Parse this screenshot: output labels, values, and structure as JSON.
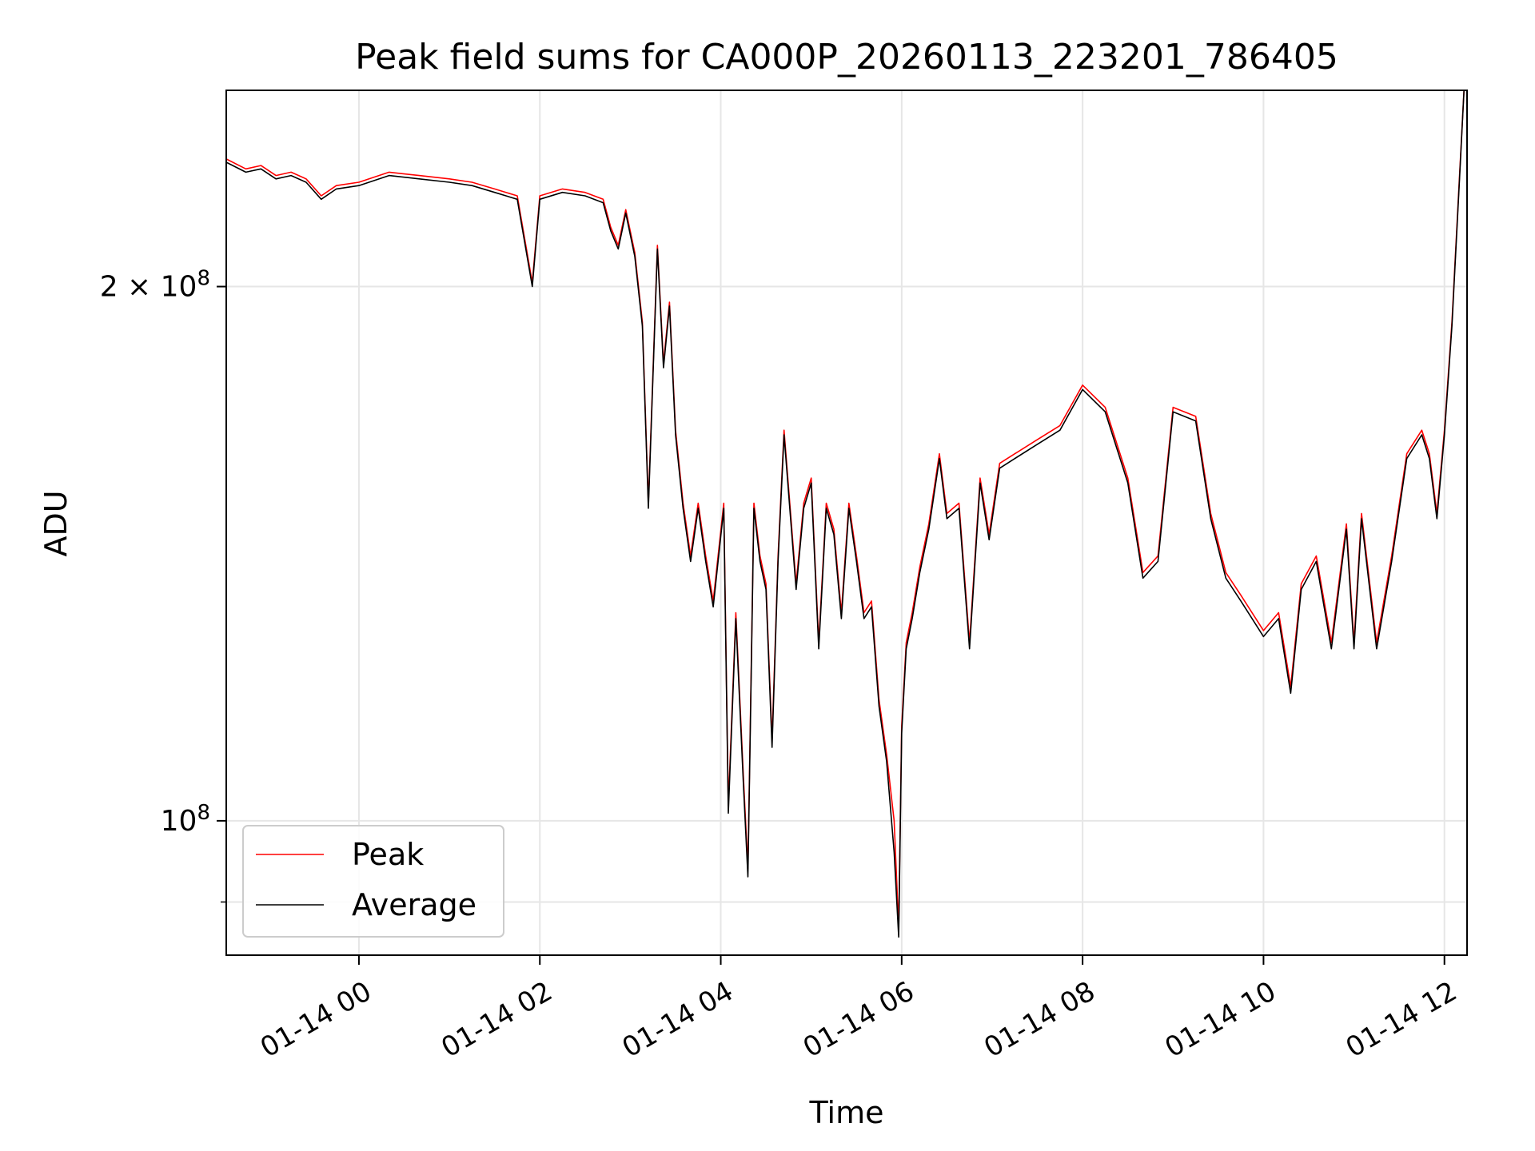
{
  "chart_data": {
    "type": "line",
    "title": "Peak field sums for CA000P_20260113_223201_786405",
    "xlabel": "Time",
    "ylabel": "ADU",
    "x_ticks": [
      "01-14 00",
      "01-14 02",
      "01-14 04",
      "01-14 06",
      "01-14 08",
      "01-14 10",
      "01-14 12"
    ],
    "y_ticks_major": [
      {
        "value": 100000000,
        "label": "10^8"
      },
      {
        "value": 200000000,
        "label": "2 × 10^8"
      }
    ],
    "y_scale": "log",
    "xlim": [
      "2026-01-13 22:32",
      "2026-01-14 12:15"
    ],
    "ylim": [
      84000000,
      258000000
    ],
    "grid": true,
    "legend_position": "lower-left",
    "series": [
      {
        "name": "Peak",
        "color": "#ff0000"
      },
      {
        "name": "Average",
        "color": "#000000"
      }
    ],
    "x": [
      "2026-01-13 22:32",
      "2026-01-13 22:45",
      "2026-01-13 22:55",
      "2026-01-13 23:05",
      "2026-01-13 23:15",
      "2026-01-13 23:25",
      "2026-01-13 23:35",
      "2026-01-13 23:45",
      "2026-01-14 00:00",
      "2026-01-14 00:20",
      "2026-01-14 00:40",
      "2026-01-14 01:00",
      "2026-01-14 01:15",
      "2026-01-14 01:30",
      "2026-01-14 01:45",
      "2026-01-14 01:55",
      "2026-01-14 02:00",
      "2026-01-14 02:15",
      "2026-01-14 02:30",
      "2026-01-14 02:42",
      "2026-01-14 02:47",
      "2026-01-14 02:52",
      "2026-01-14 02:57",
      "2026-01-14 03:03",
      "2026-01-14 03:08",
      "2026-01-14 03:12",
      "2026-01-14 03:18",
      "2026-01-14 03:22",
      "2026-01-14 03:26",
      "2026-01-14 03:30",
      "2026-01-14 03:35",
      "2026-01-14 03:40",
      "2026-01-14 03:45",
      "2026-01-14 03:50",
      "2026-01-14 03:55",
      "2026-01-14 04:02",
      "2026-01-14 04:05",
      "2026-01-14 04:10",
      "2026-01-14 04:15",
      "2026-01-14 04:18",
      "2026-01-14 04:22",
      "2026-01-14 04:26",
      "2026-01-14 04:30",
      "2026-01-14 04:34",
      "2026-01-14 04:38",
      "2026-01-14 04:42",
      "2026-01-14 04:50",
      "2026-01-14 04:55",
      "2026-01-14 05:00",
      "2026-01-14 05:05",
      "2026-01-14 05:10",
      "2026-01-14 05:15",
      "2026-01-14 05:20",
      "2026-01-14 05:25",
      "2026-01-14 05:30",
      "2026-01-14 05:35",
      "2026-01-14 05:40",
      "2026-01-14 05:45",
      "2026-01-14 05:50",
      "2026-01-14 05:55",
      "2026-01-14 05:58",
      "2026-01-14 06:00",
      "2026-01-14 06:03",
      "2026-01-14 06:07",
      "2026-01-14 06:12",
      "2026-01-14 06:18",
      "2026-01-14 06:25",
      "2026-01-14 06:30",
      "2026-01-14 06:38",
      "2026-01-14 06:45",
      "2026-01-14 06:52",
      "2026-01-14 06:58",
      "2026-01-14 07:05",
      "2026-01-14 07:15",
      "2026-01-14 07:30",
      "2026-01-14 07:45",
      "2026-01-14 08:00",
      "2026-01-14 08:15",
      "2026-01-14 08:30",
      "2026-01-14 08:40",
      "2026-01-14 08:50",
      "2026-01-14 09:00",
      "2026-01-14 09:15",
      "2026-01-14 09:25",
      "2026-01-14 09:35",
      "2026-01-14 09:45",
      "2026-01-14 10:00",
      "2026-01-14 10:10",
      "2026-01-14 10:18",
      "2026-01-14 10:25",
      "2026-01-14 10:35",
      "2026-01-14 10:45",
      "2026-01-14 10:55",
      "2026-01-14 11:00",
      "2026-01-14 11:05",
      "2026-01-14 11:15",
      "2026-01-14 11:25",
      "2026-01-14 11:35",
      "2026-01-14 11:45",
      "2026-01-14 11:50",
      "2026-01-14 11:55",
      "2026-01-14 12:00",
      "2026-01-14 12:05",
      "2026-01-14 12:10",
      "2026-01-14 12:13"
    ],
    "average_values": [
      235000000,
      232000000,
      233000000,
      230000000,
      231000000,
      229000000,
      224000000,
      227000000,
      228000000,
      231000000,
      230000000,
      229000000,
      228000000,
      226000000,
      224000000,
      200000000,
      224000000,
      226000000,
      225000000,
      223000000,
      215000000,
      210000000,
      220000000,
      208000000,
      190000000,
      150000000,
      210000000,
      180000000,
      195000000,
      165000000,
      150000000,
      140000000,
      150000000,
      140000000,
      132000000,
      150000000,
      101000000,
      130000000,
      105000000,
      93000000,
      150000000,
      140000000,
      135000000,
      110000000,
      140000000,
      165000000,
      135000000,
      150000000,
      155000000,
      125000000,
      150000000,
      145000000,
      130000000,
      150000000,
      140000000,
      130000000,
      132000000,
      116000000,
      108000000,
      96000000,
      86000000,
      112000000,
      125000000,
      130000000,
      138000000,
      146000000,
      160000000,
      148000000,
      150000000,
      125000000,
      155000000,
      144000000,
      158000000,
      160000000,
      163000000,
      166000000,
      175000000,
      170000000,
      155000000,
      137000000,
      140000000,
      170000000,
      168000000,
      148000000,
      137000000,
      133000000,
      127000000,
      130000000,
      118000000,
      135000000,
      140000000,
      125000000,
      146000000,
      125000000,
      148000000,
      125000000,
      140000000,
      160000000,
      165000000,
      160000000,
      148000000,
      165000000,
      190000000,
      230000000,
      258000000
    ],
    "peak_values": [
      236000000,
      233000000,
      234000000,
      231000000,
      232000000,
      230000000,
      225000000,
      228000000,
      229000000,
      232000000,
      231000000,
      230000000,
      229000000,
      227000000,
      225000000,
      201000000,
      225000000,
      227000000,
      226000000,
      224000000,
      216000000,
      211000000,
      221000000,
      209000000,
      191000000,
      151000000,
      211000000,
      181000000,
      196000000,
      166000000,
      151000000,
      141000000,
      151000000,
      141000000,
      133000000,
      151000000,
      102000000,
      131000000,
      106000000,
      94000000,
      151000000,
      141000000,
      136000000,
      111000000,
      141000000,
      166000000,
      136000000,
      151000000,
      156000000,
      126000000,
      151000000,
      146000000,
      131000000,
      151000000,
      141000000,
      131000000,
      133000000,
      117000000,
      109000000,
      100000000,
      87000000,
      113000000,
      126000000,
      131000000,
      139000000,
      147000000,
      161000000,
      149000000,
      151000000,
      126000000,
      156000000,
      145000000,
      159000000,
      161000000,
      164000000,
      167000000,
      176000000,
      171000000,
      156000000,
      138000000,
      141000000,
      171000000,
      169000000,
      149000000,
      138000000,
      134000000,
      128000000,
      131000000,
      119000000,
      136000000,
      141000000,
      126000000,
      147000000,
      126000000,
      149000000,
      126000000,
      141000000,
      161000000,
      166000000,
      161000000,
      149000000,
      166000000,
      191000000,
      231000000,
      258000000
    ]
  }
}
